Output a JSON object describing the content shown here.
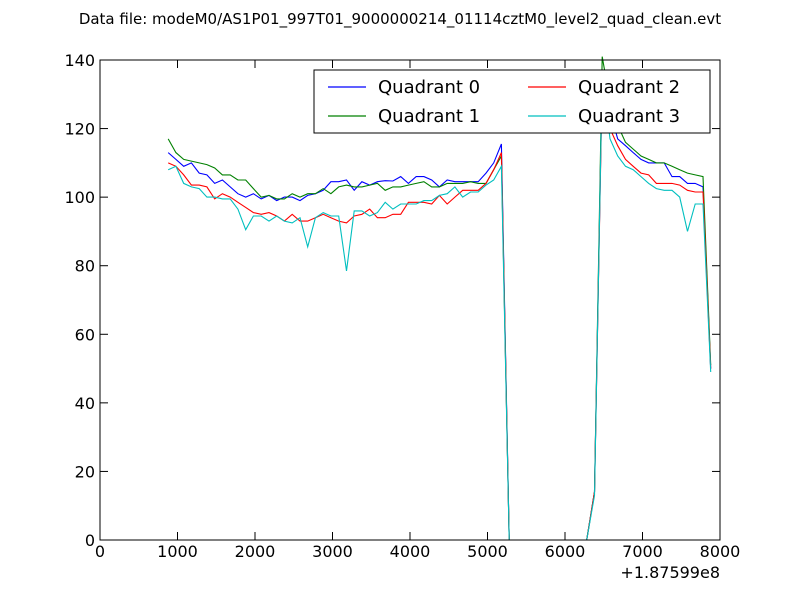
{
  "chart_data": {
    "type": "line",
    "title": "Data file: modeM0/AS1P01_997T01_9000000214_01114cztM0_level2_quad_clean.evt",
    "xlabel": "",
    "ylabel": "",
    "x_offset_label": "+1.87599e8",
    "xlim": [
      0,
      8000
    ],
    "ylim": [
      0,
      140
    ],
    "x_ticks": [
      0,
      1000,
      2000,
      3000,
      4000,
      5000,
      6000,
      7000,
      8000
    ],
    "y_ticks": [
      0,
      20,
      40,
      60,
      80,
      100,
      120,
      140
    ],
    "x_tick_labels": [
      "0",
      "1000",
      "2000",
      "3000",
      "4000",
      "5000",
      "6000",
      "7000",
      "8000"
    ],
    "y_tick_labels": [
      "0",
      "20",
      "40",
      "60",
      "80",
      "100",
      "120",
      "140"
    ],
    "grid": false,
    "legend_position": "top-right",
    "x": [
      880,
      980,
      1080,
      1180,
      1280,
      1380,
      1480,
      1580,
      1680,
      1780,
      1880,
      1980,
      2080,
      2180,
      2280,
      2380,
      2480,
      2580,
      2680,
      2780,
      2880,
      2980,
      3080,
      3180,
      3280,
      3380,
      3480,
      3580,
      3680,
      3780,
      3880,
      3980,
      4080,
      4180,
      4280,
      4380,
      4480,
      4580,
      4680,
      4780,
      4880,
      4980,
      5080,
      5180,
      5280,
      5380,
      5480,
      5580,
      5680,
      5780,
      5880,
      5980,
      6080,
      6180,
      6280,
      6380,
      6480,
      6580,
      6680,
      6780,
      6880,
      6980,
      7080,
      7180,
      7280,
      7380,
      7480,
      7580,
      7680,
      7780,
      7880
    ],
    "series": [
      {
        "name": "Quadrant 0",
        "color": "#0000ff",
        "values": [
          113,
          111,
          109,
          110,
          107,
          106.5,
          104,
          105,
          103,
          101,
          100,
          101,
          99.5,
          100.5,
          99,
          100,
          100,
          99,
          100.5,
          101,
          102,
          104.5,
          104.5,
          105,
          102,
          104.5,
          103.5,
          104.5,
          104.8,
          104.7,
          106,
          104,
          106,
          106,
          105,
          103,
          105,
          104.5,
          104.5,
          104.5,
          104.5,
          107,
          110,
          115.5,
          0,
          0,
          0,
          0,
          0,
          0,
          0,
          0,
          0,
          0,
          0,
          14,
          136,
          125,
          117,
          115,
          113,
          111,
          110,
          110,
          110,
          106,
          106,
          104,
          104,
          103,
          50
        ]
      },
      {
        "name": "Quadrant 1",
        "color": "#008000",
        "values": [
          117,
          113,
          111,
          110.5,
          110,
          109.5,
          108.5,
          106.5,
          106.5,
          105,
          105,
          102.5,
          100,
          100.5,
          99.5,
          99.5,
          101,
          100,
          101,
          101,
          102.5,
          101,
          103,
          103.5,
          103,
          103,
          103.5,
          104,
          102,
          103,
          103,
          103.5,
          104,
          104.5,
          103,
          103,
          104,
          104,
          104,
          104.5,
          104,
          104,
          108,
          112,
          0,
          0,
          0,
          0,
          0,
          0,
          0,
          0,
          0,
          0,
          0,
          14,
          141,
          128,
          121,
          116,
          114,
          112,
          111,
          110,
          110,
          109,
          108,
          107,
          106.5,
          106,
          51
        ]
      },
      {
        "name": "Quadrant 2",
        "color": "#ff0000",
        "values": [
          110,
          109,
          106.5,
          103.5,
          103.5,
          103,
          99.5,
          101,
          100,
          98.5,
          97,
          95.5,
          95,
          95.5,
          94.5,
          93,
          95,
          93,
          93,
          94,
          95,
          94,
          93,
          92.5,
          94.5,
          95,
          96.5,
          94,
          94,
          95,
          95,
          98.5,
          98.5,
          98.5,
          98,
          100.5,
          98,
          100,
          102,
          102,
          102,
          104,
          108,
          113,
          0,
          0,
          0,
          0,
          0,
          0,
          0,
          0,
          0,
          0,
          0,
          14,
          134,
          120,
          115,
          111,
          109,
          107,
          106.5,
          104,
          104,
          104,
          103.5,
          102,
          101.5,
          101.5,
          50
        ]
      },
      {
        "name": "Quadrant 3",
        "color": "#00bfbf",
        "values": [
          108,
          109,
          104,
          103,
          102.5,
          100,
          100,
          99.5,
          99.5,
          96.5,
          90.5,
          94.5,
          94.5,
          93,
          94.5,
          93,
          92.5,
          94,
          85.5,
          94,
          95.5,
          94.5,
          94.5,
          78.5,
          96,
          96,
          94.5,
          95.5,
          98.5,
          96.5,
          98,
          98,
          98,
          99,
          99,
          100.5,
          101,
          103,
          100,
          101.5,
          101.5,
          103.5,
          105,
          109,
          0,
          0,
          0,
          0,
          0,
          0,
          0,
          0,
          0,
          0,
          0,
          13,
          136,
          117,
          112,
          109,
          108,
          106,
          104,
          102.5,
          102,
          102,
          100,
          90,
          98,
          98,
          49
        ]
      }
    ]
  }
}
